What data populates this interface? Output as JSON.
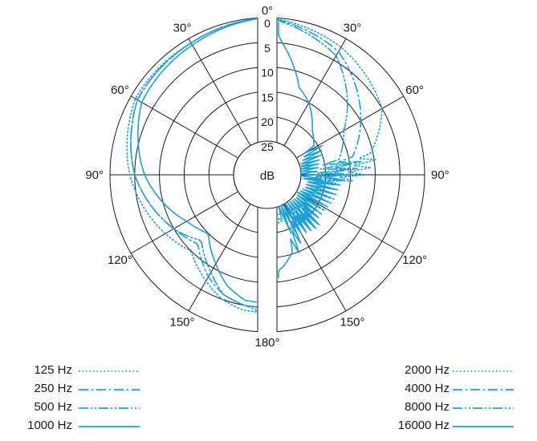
{
  "chart_data": {
    "type": "polar",
    "radial_unit": "dB",
    "radial_ticks": [
      "0",
      "5",
      "10",
      "15",
      "20",
      "25"
    ],
    "radial_range": [
      0,
      25
    ],
    "angle_labels_left": [
      "0°",
      "30°",
      "60°",
      "90°",
      "120°",
      "150°",
      "180°"
    ],
    "angle_labels_right": [
      "30°",
      "60°",
      "90°",
      "120°",
      "150°"
    ],
    "angle_ticks_deg": [
      0,
      30,
      60,
      90,
      120,
      150,
      180
    ],
    "colors": {
      "line": "#1ba1d9",
      "grid": "#1a1a1a"
    },
    "left_half": [
      {
        "name": "125 Hz",
        "style": "dotted",
        "angles": [
          0,
          30,
          60,
          90,
          120,
          135,
          150,
          160,
          170,
          180
        ],
        "db": [
          0,
          1,
          1,
          4,
          8,
          10,
          7,
          5,
          4,
          4
        ]
      },
      {
        "name": "250 Hz",
        "style": "dashdot",
        "angles": [
          0,
          30,
          60,
          90,
          120,
          135,
          150,
          160,
          170,
          180
        ],
        "db": [
          0,
          1,
          1.5,
          5,
          10,
          12,
          8,
          6,
          5,
          5
        ]
      },
      {
        "name": "500 Hz",
        "style": "dashdotdot",
        "angles": [
          0,
          30,
          60,
          90,
          120,
          135,
          150,
          160,
          170,
          180
        ],
        "db": [
          0,
          1,
          1.5,
          5,
          10,
          13,
          9,
          6,
          5,
          4
        ]
      },
      {
        "name": "1000 Hz",
        "style": "solid",
        "angles": [
          0,
          30,
          60,
          90,
          120,
          135,
          150,
          160,
          170,
          180
        ],
        "db": [
          0,
          1.5,
          2.5,
          7,
          13,
          15,
          11,
          8,
          6,
          6
        ]
      }
    ],
    "right_half": [
      {
        "name": "2000 Hz",
        "style": "dotted",
        "angles": [
          0,
          30,
          60,
          90,
          100,
          120,
          150,
          180
        ],
        "db": [
          0,
          2,
          5,
          14,
          20,
          22,
          23,
          24
        ],
        "zigzag_from_deg": 80
      },
      {
        "name": "4000 Hz",
        "style": "dashdot",
        "angles": [
          0,
          30,
          60,
          90,
          100,
          120,
          150,
          180
        ],
        "db": [
          0,
          3,
          10,
          17,
          21,
          22,
          22,
          23
        ],
        "zigzag_from_deg": 80
      },
      {
        "name": "8000 Hz",
        "style": "dashdotdot",
        "angles": [
          0,
          30,
          60,
          90,
          100,
          120,
          150,
          180
        ],
        "db": [
          0,
          4,
          14,
          19,
          20,
          21,
          22,
          22
        ],
        "zigzag_from_deg": 80
      },
      {
        "name": "16000 Hz",
        "style": "solid",
        "angles": [
          0,
          10,
          20,
          30,
          45,
          60,
          75,
          90,
          105,
          120,
          135,
          150,
          160,
          170,
          180
        ],
        "db": [
          1,
          7,
          13,
          15,
          19,
          21,
          23,
          24,
          20,
          23,
          19,
          20,
          16,
          13,
          11
        ],
        "zigzag_from_deg": 60
      }
    ]
  }
}
